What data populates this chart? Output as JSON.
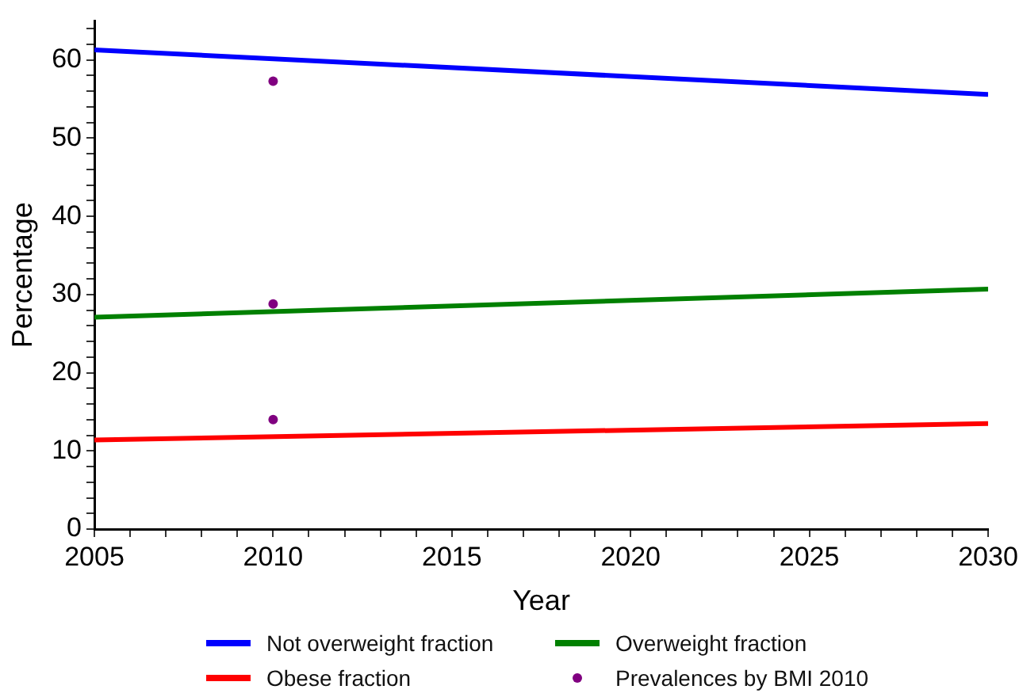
{
  "chart_data": {
    "type": "line",
    "xlabel": "Year",
    "ylabel": "Percentage",
    "xlim": [
      2005,
      2030
    ],
    "ylim": [
      0,
      65
    ],
    "xticks": [
      2005,
      {
        "value": 2006,
        "label": null
      },
      {
        "value": 2007,
        "label": null
      },
      {
        "value": 2008,
        "label": null
      },
      {
        "value": 2009,
        "label": null
      },
      2010,
      {
        "value": 2011,
        "label": null
      },
      {
        "value": 2012,
        "label": null
      },
      {
        "value": 2013,
        "label": null
      },
      {
        "value": 2014,
        "label": null
      },
      2015,
      {
        "value": 2016,
        "label": null
      },
      {
        "value": 2017,
        "label": null
      },
      {
        "value": 2018,
        "label": null
      },
      {
        "value": 2019,
        "label": null
      },
      2020,
      {
        "value": 2021,
        "label": null
      },
      {
        "value": 2022,
        "label": null
      },
      {
        "value": 2023,
        "label": null
      },
      {
        "value": 2024,
        "label": null
      },
      2025,
      {
        "value": 2026,
        "label": null
      },
      {
        "value": 2027,
        "label": null
      },
      {
        "value": 2028,
        "label": null
      },
      {
        "value": 2029,
        "label": null
      },
      2030
    ],
    "yticks": [
      0,
      {
        "value": 2,
        "label": null
      },
      {
        "value": 4,
        "label": null
      },
      {
        "value": 6,
        "label": null
      },
      {
        "value": 8,
        "label": null
      },
      10,
      {
        "value": 12,
        "label": null
      },
      {
        "value": 14,
        "label": null
      },
      {
        "value": 16,
        "label": null
      },
      {
        "value": 18,
        "label": null
      },
      20,
      {
        "value": 22,
        "label": null
      },
      {
        "value": 24,
        "label": null
      },
      {
        "value": 26,
        "label": null
      },
      {
        "value": 28,
        "label": null
      },
      30,
      {
        "value": 32,
        "label": null
      },
      {
        "value": 34,
        "label": null
      },
      {
        "value": 36,
        "label": null
      },
      {
        "value": 38,
        "label": null
      },
      40,
      {
        "value": 42,
        "label": null
      },
      {
        "value": 44,
        "label": null
      },
      {
        "value": 46,
        "label": null
      },
      {
        "value": 48,
        "label": null
      },
      50,
      {
        "value": 52,
        "label": null
      },
      {
        "value": 54,
        "label": null
      },
      {
        "value": 56,
        "label": null
      },
      {
        "value": 58,
        "label": null
      },
      60,
      {
        "value": 62,
        "label": null
      },
      {
        "value": 64,
        "label": null
      }
    ],
    "grid": false,
    "legend": "bottom",
    "marker": "none",
    "series": [
      {
        "name": "Not overweight fraction",
        "color": "#0000ff",
        "x": [
          2005,
          2030
        ],
        "values": [
          61.3,
          55.6
        ]
      },
      {
        "name": "Overweight fraction",
        "color": "#008000",
        "x": [
          2005,
          2030
        ],
        "values": [
          27.1,
          30.7
        ]
      },
      {
        "name": "Obese fraction",
        "color": "#ff0000",
        "x": [
          2005,
          2030
        ],
        "values": [
          11.4,
          13.5
        ]
      },
      {
        "name": "Prevalences by BMI 2010",
        "type": "scatter",
        "marker": "circle",
        "color": "#800080",
        "x": [
          2010,
          2010,
          2010
        ],
        "values": [
          57.3,
          28.8,
          14.0
        ]
      }
    ]
  }
}
